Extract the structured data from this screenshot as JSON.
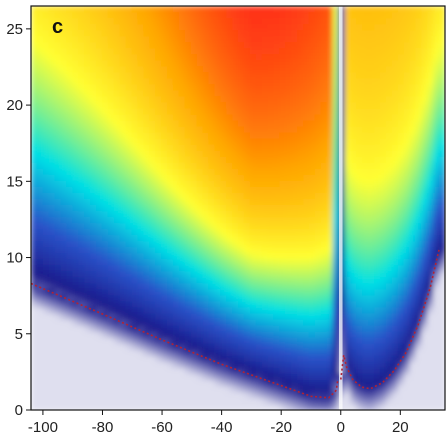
{
  "chart_data": {
    "type": "heatmap",
    "title": "",
    "panel_label": "c",
    "xlabel": "",
    "ylabel": "",
    "xlim": [
      -104,
      35
    ],
    "ylim": [
      0,
      26.5
    ],
    "x_ticks": [
      -100,
      -80,
      -60,
      -40,
      -20,
      0,
      20
    ],
    "x_tick_labels": [
      "-100",
      "-80",
      "-60",
      "-40",
      "-20",
      "0",
      "20"
    ],
    "y_ticks": [
      0,
      5,
      10,
      15,
      20,
      25
    ],
    "y_tick_labels": [
      "0",
      "5",
      "10",
      "15",
      "20",
      "25"
    ],
    "grid": false,
    "colormap": [
      "#ffffff",
      "#1a1a8c",
      "#2a52c8",
      "#00e0e6",
      "#ffff33",
      "#ffa500",
      "#ff1a1a",
      "#9e3a3a"
    ],
    "boundary_curve": {
      "style": "dotted",
      "color": "#b22233",
      "left_branch": [
        [
          -104,
          8.3
        ],
        [
          -80,
          6.3
        ],
        [
          -60,
          4.6
        ],
        [
          -40,
          3.0
        ],
        [
          -20,
          1.6
        ],
        [
          -10,
          0.9
        ],
        [
          -4,
          0.8
        ],
        [
          -1.5,
          1.3
        ],
        [
          -1,
          2.0
        ]
      ],
      "right_branch": [
        [
          0,
          2.0
        ],
        [
          1,
          3.6
        ],
        [
          2,
          2.8
        ],
        [
          4,
          2.0
        ],
        [
          7,
          1.5
        ],
        [
          10,
          1.4
        ],
        [
          14,
          1.8
        ],
        [
          18,
          2.6
        ],
        [
          22,
          3.8
        ],
        [
          26,
          5.6
        ],
        [
          30,
          8.0
        ],
        [
          33,
          10.5
        ]
      ]
    }
  }
}
